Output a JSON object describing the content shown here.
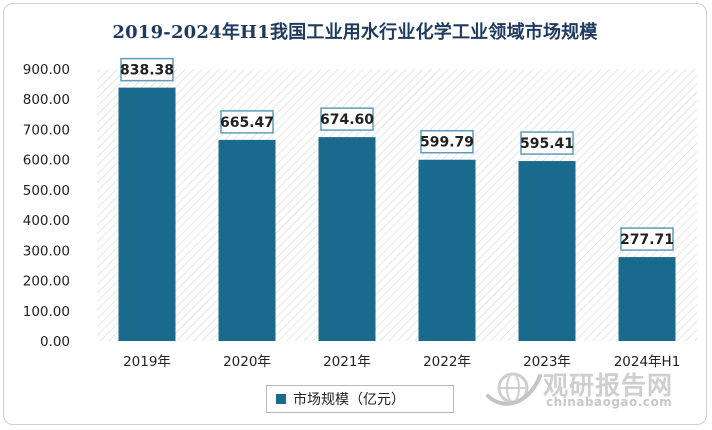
{
  "chart_data": {
    "type": "bar",
    "title": "2019-2024年H1我国工业用水行业化学工业领域市场规模",
    "categories": [
      "2019年",
      "2020年",
      "2021年",
      "2022年",
      "2023年",
      "2024年H1"
    ],
    "series": [
      {
        "name": "市场规模（亿元）",
        "values": [
          838.38,
          665.47,
          674.6,
          599.79,
          595.41,
          277.71
        ]
      }
    ],
    "value_labels": [
      "838.38",
      "665.47",
      "674.60",
      "599.79",
      "595.41",
      "277.71"
    ],
    "ylim": [
      0,
      900
    ],
    "yticks": [
      "0.00",
      "100.00",
      "200.00",
      "300.00",
      "400.00",
      "500.00",
      "600.00",
      "700.00",
      "800.00",
      "900.00"
    ],
    "grid": false,
    "legend_position": "bottom",
    "bar_color": "#1a6a8e"
  },
  "watermark": {
    "brand_cn": "观研报告网",
    "brand_en": "chinabaogao.com",
    "icon": "globe-swoosh-icon"
  }
}
